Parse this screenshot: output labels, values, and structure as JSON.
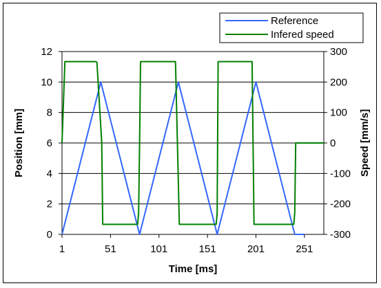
{
  "chart_data": {
    "type": "line",
    "xlabel": "Time [ms]",
    "ylabel": "Position [mm]",
    "y2label": "Speed [mm/s]",
    "xlim": [
      1,
      271
    ],
    "ylim": [
      0,
      12
    ],
    "y2lim": [
      -300,
      300
    ],
    "x_ticks": [
      1,
      51,
      101,
      151,
      201,
      251
    ],
    "y_ticks": [
      0,
      2,
      4,
      6,
      8,
      10,
      12
    ],
    "y2_ticks": [
      -300,
      -200,
      -100,
      0,
      100,
      200,
      300
    ],
    "grid": "horizontal",
    "legend_position": "top-right",
    "series": [
      {
        "name": "Reference",
        "axis": "left",
        "color": "#3366FF",
        "x": [
          1,
          41,
          81,
          121,
          161,
          201,
          241,
          251
        ],
        "y": [
          0,
          10,
          0,
          10,
          0,
          10,
          0,
          0
        ]
      },
      {
        "name": "Infered speed",
        "axis": "right",
        "color": "#008000",
        "x": [
          1,
          4,
          36,
          37,
          42,
          43,
          70,
          79,
          80,
          81,
          82,
          114,
          118,
          122,
          160,
          161,
          162,
          194,
          197,
          199,
          240,
          241,
          242,
          252,
          271
        ],
        "y": [
          0,
          267,
          267,
          264,
          0,
          -267,
          -267,
          -267,
          -230,
          0,
          267,
          267,
          267,
          -267,
          -267,
          -230,
          267,
          267,
          267,
          -267,
          -267,
          -230,
          0,
          0,
          0
        ]
      }
    ]
  }
}
